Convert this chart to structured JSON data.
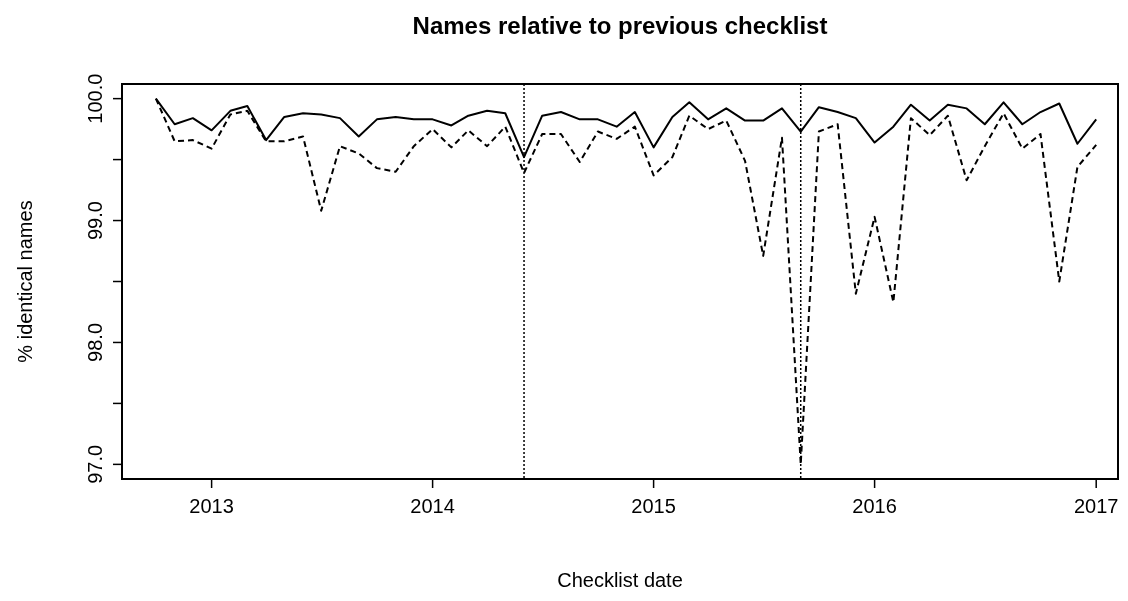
{
  "chart_data": {
    "type": "line",
    "title": "Names relative to previous checklist",
    "xlabel": "Checklist date",
    "ylabel": "% identical names",
    "x": [
      "2012-10",
      "2012-11",
      "2012-12",
      "2013-01",
      "2013-02",
      "2013-03",
      "2013-04",
      "2013-05",
      "2013-06",
      "2013-07",
      "2013-08",
      "2013-09",
      "2013-10",
      "2013-11",
      "2013-12",
      "2014-01",
      "2014-02",
      "2014-03",
      "2014-04",
      "2014-05",
      "2014-06",
      "2014-07",
      "2014-08",
      "2014-09",
      "2014-10",
      "2014-11",
      "2014-12",
      "2015-01",
      "2015-02",
      "2015-03",
      "2015-04",
      "2015-05",
      "2015-06",
      "2015-07",
      "2015-08",
      "2015-09",
      "2015-10",
      "2015-11",
      "2015-12",
      "2016-01",
      "2016-02",
      "2016-03",
      "2016-04",
      "2016-05",
      "2016-06",
      "2016-07",
      "2016-08",
      "2016-09",
      "2016-10",
      "2016-11",
      "2016-12",
      "2017-01"
    ],
    "series": [
      {
        "color": "#000000",
        "line_style": "solid",
        "values": [
          100.0,
          99.79,
          99.84,
          99.74,
          99.9,
          99.94,
          99.66,
          99.85,
          99.88,
          99.87,
          99.84,
          99.69,
          99.83,
          99.85,
          99.83,
          99.83,
          99.78,
          99.86,
          99.9,
          99.88,
          99.52,
          99.86,
          99.89,
          99.83,
          99.83,
          99.77,
          99.89,
          99.6,
          99.85,
          99.97,
          99.83,
          99.92,
          99.82,
          99.82,
          99.92,
          99.73,
          99.93,
          99.89,
          99.84,
          99.64,
          99.77,
          99.95,
          99.82,
          99.95,
          99.92,
          99.79,
          99.97,
          99.79,
          99.89,
          99.96,
          99.63,
          99.83
        ]
      },
      {
        "color": "#000000",
        "line_style": "dashed",
        "values": [
          100.0,
          99.65,
          99.66,
          99.59,
          99.87,
          99.9,
          99.65,
          99.65,
          99.69,
          99.08,
          99.61,
          99.55,
          99.43,
          99.4,
          99.61,
          99.75,
          99.6,
          99.74,
          99.61,
          99.77,
          99.39,
          99.71,
          99.71,
          99.48,
          99.73,
          99.67,
          99.77,
          99.37,
          99.52,
          99.86,
          99.75,
          99.82,
          99.49,
          98.71,
          99.68,
          97.0,
          99.73,
          99.79,
          98.4,
          99.03,
          98.33,
          99.84,
          99.7,
          99.86,
          99.33,
          99.61,
          99.88,
          99.59,
          99.71,
          98.5,
          99.44,
          99.62
        ]
      }
    ],
    "xlim": [
      "2012-08-06",
      "2017-02-06"
    ],
    "xticks": [
      "2013",
      "2014",
      "2015",
      "2016",
      "2017"
    ],
    "ylim": [
      96.88,
      100.12
    ],
    "yticks": [
      {
        "value": 100,
        "label": "100.0"
      },
      {
        "value": 99.5,
        "label": null
      },
      {
        "value": 99,
        "label": "99.0"
      },
      {
        "value": 98.5,
        "label": null
      },
      {
        "value": 98,
        "label": "98.0"
      },
      {
        "value": 97.5,
        "label": null
      },
      {
        "value": 97,
        "label": "97.0"
      }
    ],
    "ref_lines": [
      {
        "axis": "x",
        "value": "2014-06",
        "color": "#000000",
        "line_style": "dotted"
      },
      {
        "axis": "x",
        "value": "2015-09",
        "color": "#000000",
        "line_style": "dotted"
      }
    ],
    "grid": false
  }
}
